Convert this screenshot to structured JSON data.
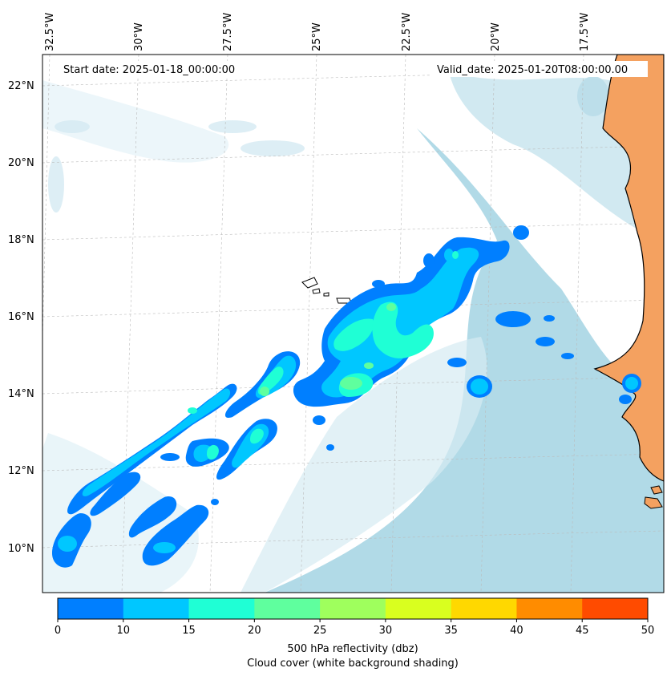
{
  "map": {
    "start_date": "Start date: 2025-01-18_00:00:00",
    "valid_date": "Valid_date: 2025-01-20T08:00:00.00",
    "lon_labels": [
      "32.5°W",
      "30°W",
      "27.5°W",
      "25°W",
      "22.5°W",
      "20°W",
      "17.5°W"
    ],
    "lat_labels": [
      "22°N",
      "20°N",
      "18°N",
      "16°N",
      "14°N",
      "12°N",
      "10°N"
    ]
  },
  "colorbar": {
    "ticks": [
      "0",
      "10",
      "15",
      "20",
      "25",
      "30",
      "35",
      "40",
      "45",
      "50"
    ],
    "colors": [
      "#007fff",
      "#00c7ff",
      "#1fffd5",
      "#5fff9e",
      "#9fff5d",
      "#d9ff1f",
      "#ffd800",
      "#ff8c00",
      "#ff4b00"
    ],
    "label_line1": "500 hPa reflectivity (dbz)",
    "label_line2": "Cloud cover (white background shading)"
  },
  "colors": {
    "land": "#f4a160",
    "cloud_clear": "#add8e6",
    "coast": "#000000",
    "grid": "#bbbbbb"
  }
}
